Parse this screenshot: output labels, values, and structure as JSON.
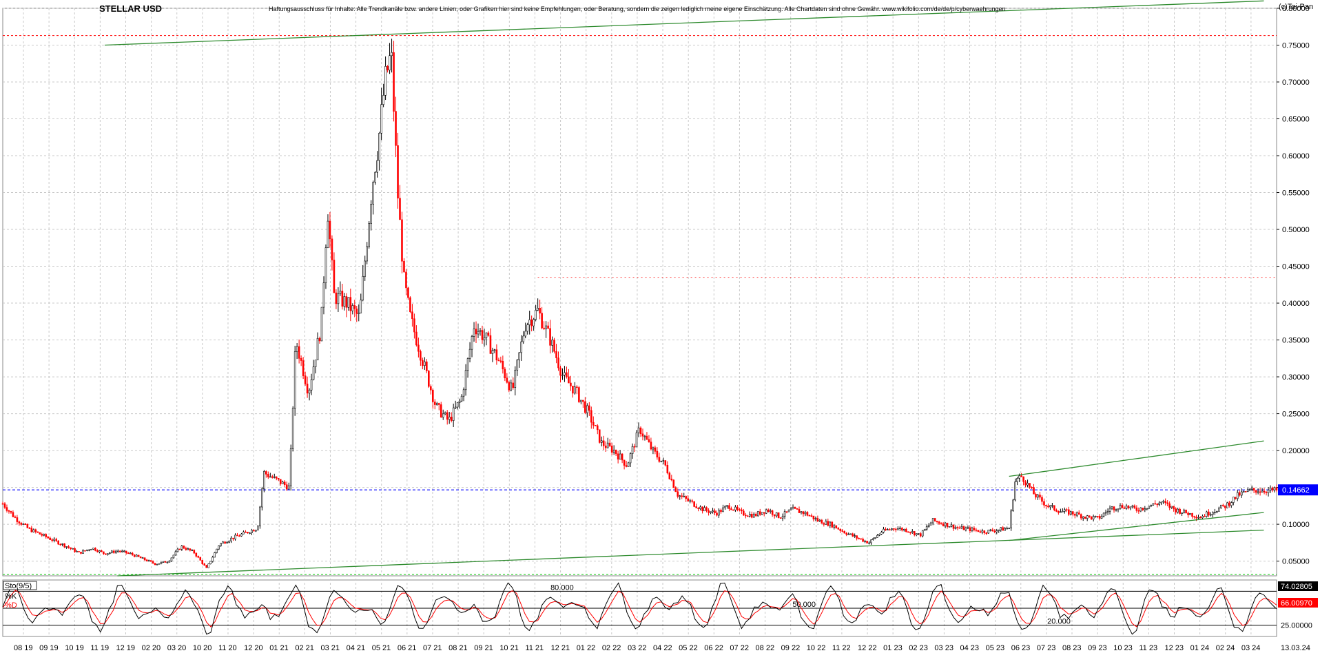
{
  "chart_data": {
    "type": "candlestick",
    "title": "STELLAR USD",
    "disclaimer": "Haftungsausschluss für Inhalte: Alle Trendkanäle bzw. andere Linien, oder Grafiken hier sind keine Empfehlungen, oder Beratung, sondern die zeigen lediglich meine eigene Einschätzung. Alle Chartdaten sind ohne Gewähr.  www.wikifolio.com/de/de/p/cyberwaehrungen",
    "copyright": "(c)Tai-Pan",
    "ylim": [
      0.03,
      0.8
    ],
    "yticks": [
      0.05,
      0.1,
      0.15,
      0.2,
      0.25,
      0.3,
      0.35,
      0.4,
      0.45,
      0.5,
      0.55,
      0.6,
      0.65,
      0.7,
      0.75,
      0.8
    ],
    "ytick_labels": [
      "0.05000",
      "0.10000",
      "0.15000",
      "0.20000",
      "0.25000",
      "0.30000",
      "0.35000",
      "0.40000",
      "0.45000",
      "0.50000",
      "0.55000",
      "0.60000",
      "0.65000",
      "0.70000",
      "0.75000",
      "0.80000"
    ],
    "current_price_label": "0.14662",
    "current_price": 0.14662,
    "resistance_level": 0.763,
    "support_level": 0.032,
    "mid_resistance": 0.435,
    "x_labels": [
      "08 19",
      "09 19",
      "10 19",
      "11 19",
      "12 19",
      "02 20",
      "03 20",
      "10 20",
      "11 20",
      "12 20",
      "01 21",
      "02 21",
      "03 21",
      "04 21",
      "05 21",
      "06 21",
      "07 21",
      "08 21",
      "09 21",
      "10 21",
      "11 21",
      "12 21",
      "01 22",
      "02 22",
      "03 22",
      "04 22",
      "05 22",
      "06 22",
      "07 22",
      "08 22",
      "09 22",
      "10 22",
      "11 22",
      "12 22",
      "01 23",
      "02 23",
      "03 23",
      "04 23",
      "05 23",
      "06 23",
      "07 23",
      "08 23",
      "09 23",
      "10 23",
      "11 23",
      "12 23",
      "01 24",
      "02 24",
      "03 24"
    ],
    "last_date_label": "13.03.24",
    "price_path": [
      [
        0,
        0.128
      ],
      [
        0.01,
        0.108
      ],
      [
        0.02,
        0.094
      ],
      [
        0.035,
        0.082
      ],
      [
        0.05,
        0.07
      ],
      [
        0.06,
        0.061
      ],
      [
        0.07,
        0.068
      ],
      [
        0.08,
        0.06
      ],
      [
        0.09,
        0.064
      ],
      [
        0.1,
        0.06
      ],
      [
        0.11,
        0.053
      ],
      [
        0.12,
        0.046
      ],
      [
        0.13,
        0.05
      ],
      [
        0.14,
        0.07
      ],
      [
        0.15,
        0.062
      ],
      [
        0.16,
        0.04
      ],
      [
        0.17,
        0.073
      ],
      [
        0.18,
        0.081
      ],
      [
        0.19,
        0.088
      ],
      [
        0.2,
        0.095
      ],
      [
        0.205,
        0.17
      ],
      [
        0.215,
        0.16
      ],
      [
        0.225,
        0.15
      ],
      [
        0.23,
        0.35
      ],
      [
        0.24,
        0.28
      ],
      [
        0.25,
        0.37
      ],
      [
        0.255,
        0.53
      ],
      [
        0.26,
        0.41
      ],
      [
        0.27,
        0.4
      ],
      [
        0.28,
        0.38
      ],
      [
        0.29,
        0.56
      ],
      [
        0.295,
        0.62
      ],
      [
        0.3,
        0.7
      ],
      [
        0.305,
        0.74
      ],
      [
        0.31,
        0.55
      ],
      [
        0.315,
        0.43
      ],
      [
        0.32,
        0.38
      ],
      [
        0.33,
        0.32
      ],
      [
        0.34,
        0.26
      ],
      [
        0.35,
        0.24
      ],
      [
        0.36,
        0.27
      ],
      [
        0.37,
        0.37
      ],
      [
        0.38,
        0.35
      ],
      [
        0.39,
        0.32
      ],
      [
        0.4,
        0.28
      ],
      [
        0.41,
        0.37
      ],
      [
        0.42,
        0.39
      ],
      [
        0.43,
        0.35
      ],
      [
        0.44,
        0.3
      ],
      [
        0.45,
        0.28
      ],
      [
        0.46,
        0.25
      ],
      [
        0.47,
        0.21
      ],
      [
        0.48,
        0.2
      ],
      [
        0.49,
        0.18
      ],
      [
        0.5,
        0.23
      ],
      [
        0.51,
        0.2
      ],
      [
        0.52,
        0.18
      ],
      [
        0.53,
        0.14
      ],
      [
        0.54,
        0.13
      ],
      [
        0.55,
        0.12
      ],
      [
        0.56,
        0.115
      ],
      [
        0.57,
        0.125
      ],
      [
        0.58,
        0.115
      ],
      [
        0.59,
        0.112
      ],
      [
        0.6,
        0.12
      ],
      [
        0.61,
        0.11
      ],
      [
        0.62,
        0.12
      ],
      [
        0.63,
        0.115
      ],
      [
        0.64,
        0.105
      ],
      [
        0.65,
        0.1
      ],
      [
        0.66,
        0.09
      ],
      [
        0.67,
        0.082
      ],
      [
        0.68,
        0.075
      ],
      [
        0.69,
        0.09
      ],
      [
        0.7,
        0.095
      ],
      [
        0.71,
        0.092
      ],
      [
        0.72,
        0.085
      ],
      [
        0.73,
        0.105
      ],
      [
        0.74,
        0.1
      ],
      [
        0.75,
        0.095
      ],
      [
        0.76,
        0.093
      ],
      [
        0.77,
        0.09
      ],
      [
        0.78,
        0.092
      ],
      [
        0.79,
        0.095
      ],
      [
        0.795,
        0.16
      ],
      [
        0.8,
        0.165
      ],
      [
        0.81,
        0.14
      ],
      [
        0.82,
        0.125
      ],
      [
        0.83,
        0.118
      ],
      [
        0.84,
        0.115
      ],
      [
        0.85,
        0.11
      ],
      [
        0.86,
        0.108
      ],
      [
        0.87,
        0.122
      ],
      [
        0.88,
        0.125
      ],
      [
        0.89,
        0.12
      ],
      [
        0.9,
        0.125
      ],
      [
        0.91,
        0.13
      ],
      [
        0.92,
        0.12
      ],
      [
        0.93,
        0.115
      ],
      [
        0.94,
        0.11
      ],
      [
        0.95,
        0.118
      ],
      [
        0.96,
        0.125
      ],
      [
        0.97,
        0.14
      ],
      [
        0.98,
        0.146
      ]
    ],
    "trendlines": [
      {
        "color": "#2e8b2e",
        "from": [
          0.08,
          0.75
        ],
        "to": [
          0.99,
          0.81
        ]
      },
      {
        "color": "#2e8b2e",
        "from": [
          0.09,
          0.03
        ],
        "to": [
          0.99,
          0.092
        ]
      },
      {
        "color": "#2e8b2e",
        "from": [
          0.79,
          0.165
        ],
        "to": [
          0.99,
          0.213
        ]
      },
      {
        "color": "#2e8b2e",
        "from": [
          0.79,
          0.078
        ],
        "to": [
          0.99,
          0.116
        ]
      }
    ],
    "oscillator": {
      "name": "Sto(9/5)",
      "k_label": "%K",
      "d_label": "%D",
      "k_value_label": "74.02805",
      "d_value_label": "66.00970",
      "level_labels": [
        "80.000",
        "50.000",
        "20.000"
      ],
      "right_tick_label": "25.00000"
    }
  },
  "colors": {
    "bull_candle": "#000000",
    "bear_candle": "#ff0000",
    "trend": "#2e8b2e",
    "current_line": "#0000ff",
    "resistance": "#ff0000",
    "support": "#00cc00",
    "grid": "#c8c8c8",
    "price_box": "#0000ff",
    "k_box": "#000000",
    "d_box": "#ff0000"
  }
}
